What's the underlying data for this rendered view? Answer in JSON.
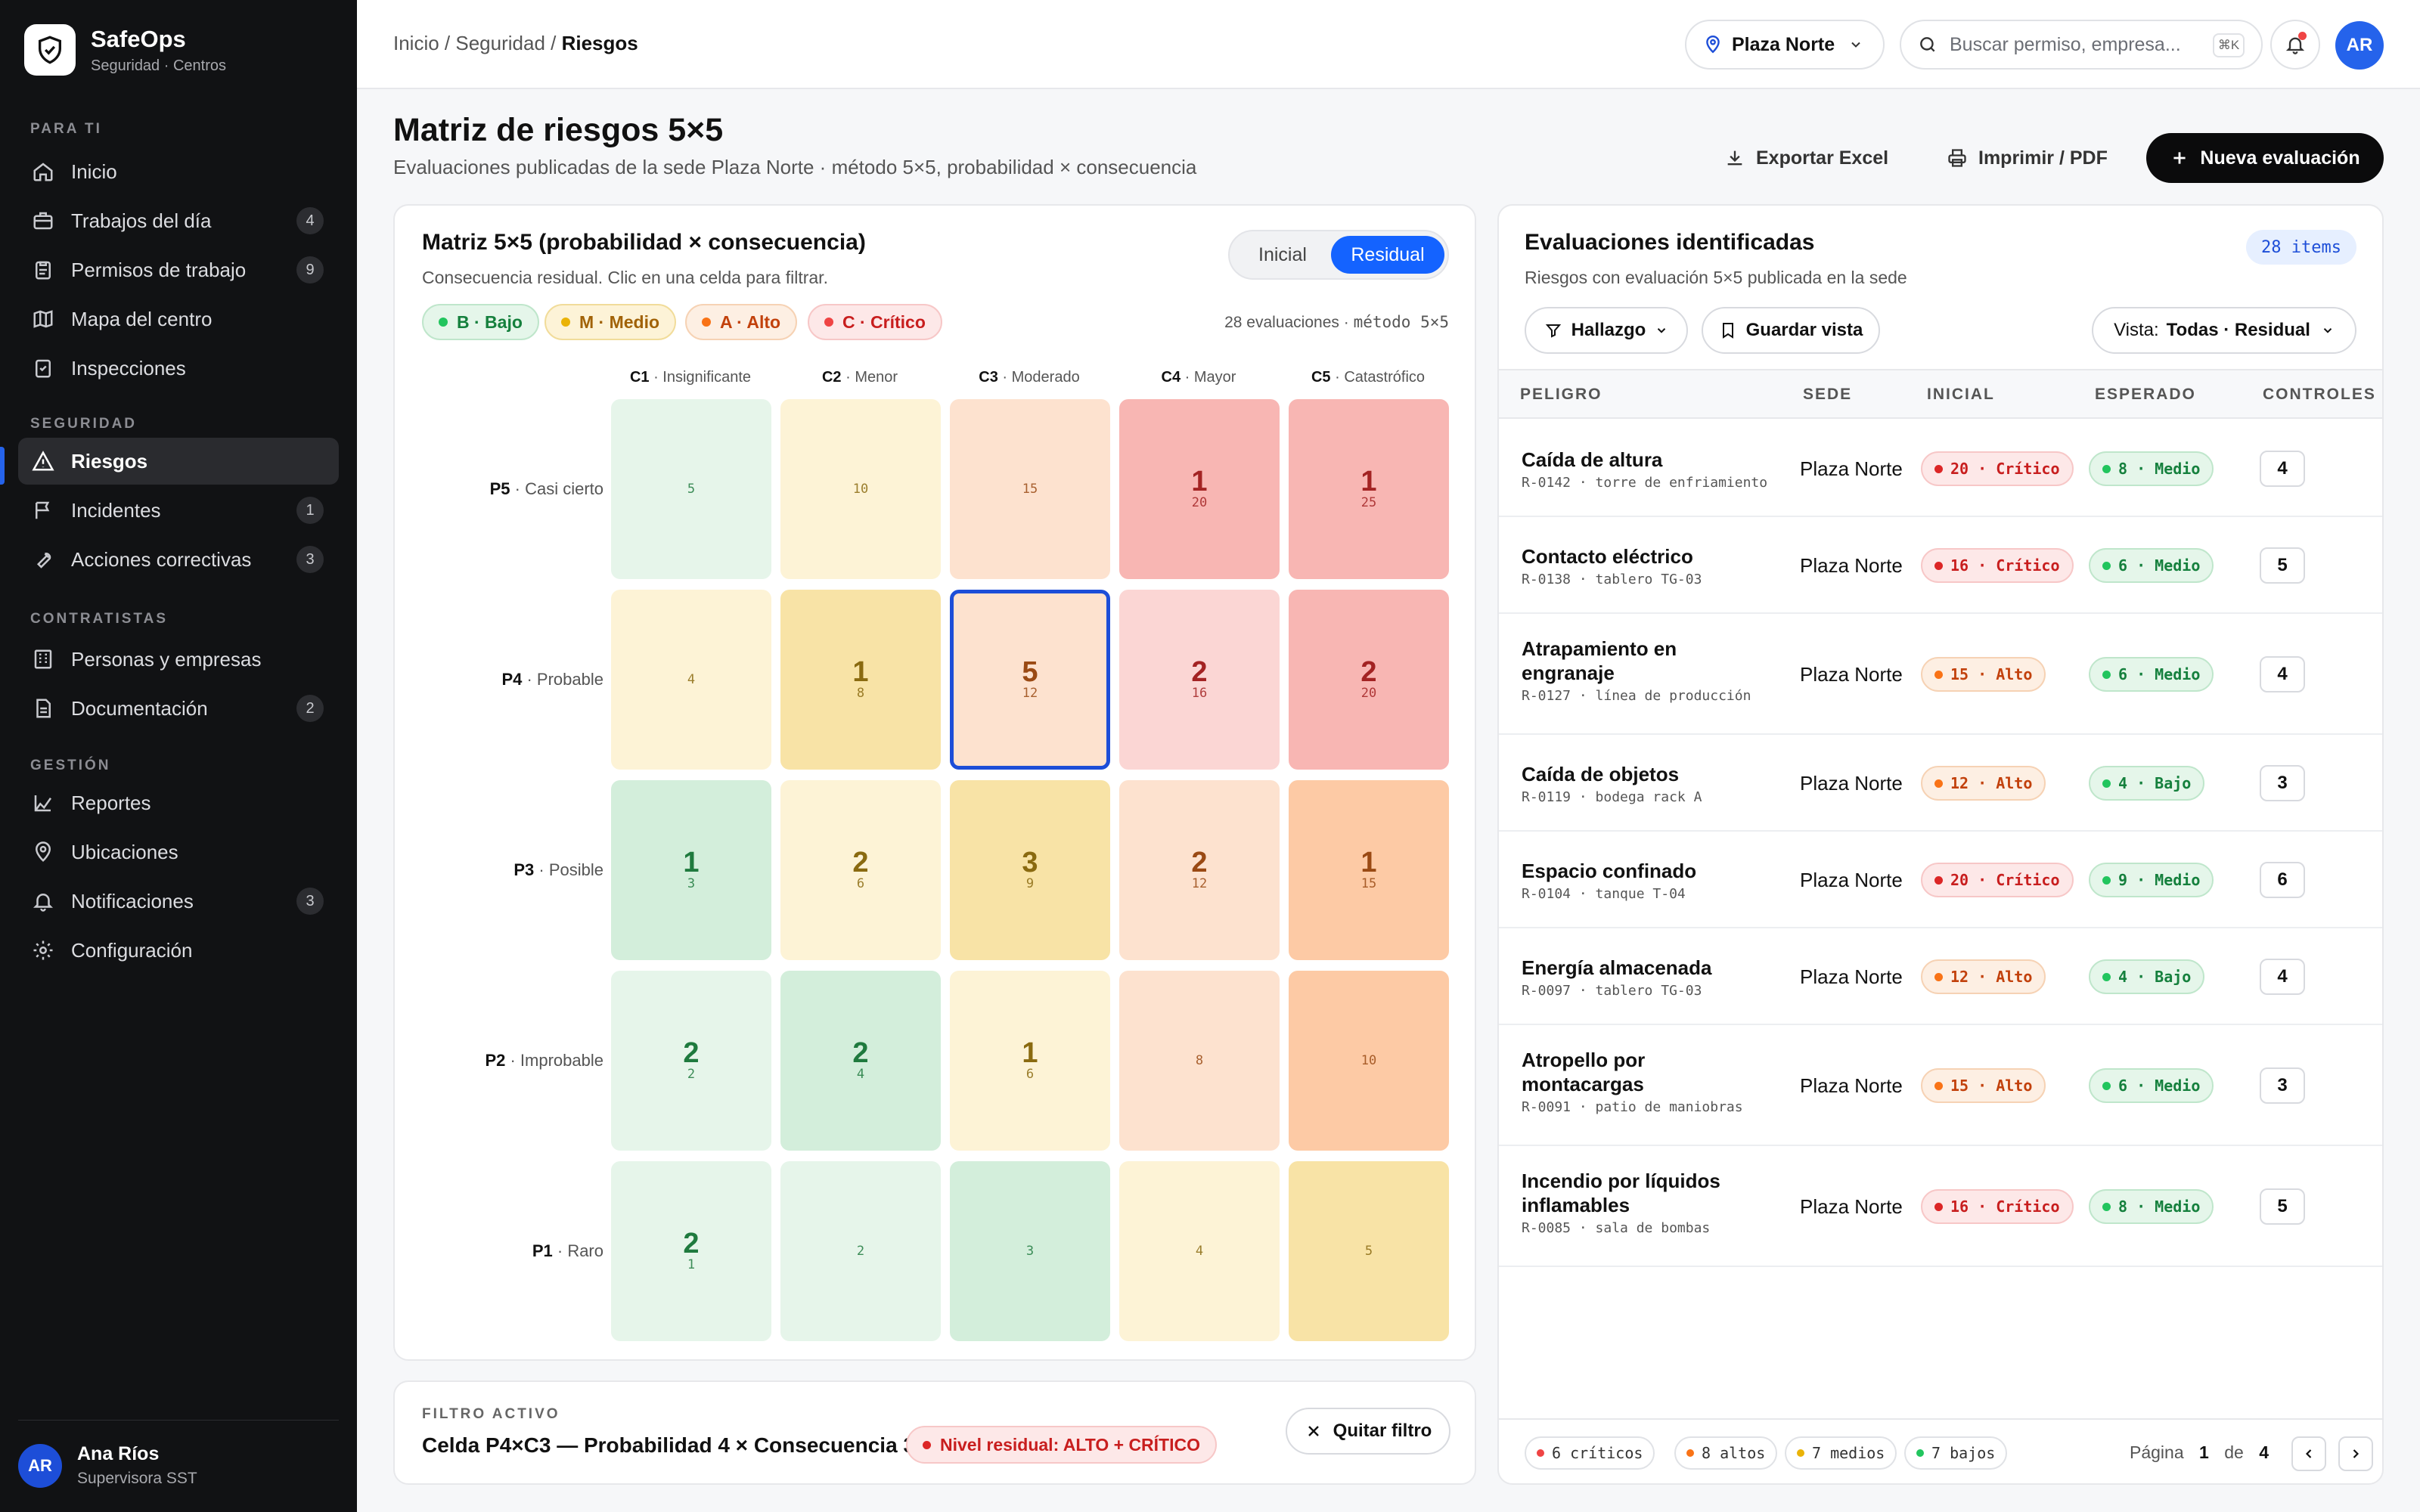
{
  "app": {
    "name": "SafeOps",
    "subtitle": "Seguridad · Centros"
  },
  "sidebar": {
    "sections": [
      "PARA TI",
      "SEGURIDAD",
      "CONTRATISTAS",
      "GESTIÓN"
    ],
    "items": [
      {
        "label": "Inicio",
        "icon": "home-icon",
        "count": ""
      },
      {
        "label": "Trabajos del día",
        "icon": "briefcase-icon",
        "count": "4"
      },
      {
        "label": "Permisos de trabajo",
        "icon": "clipboard-icon",
        "count": "9"
      },
      {
        "label": "Mapa del centro",
        "icon": "map-icon",
        "count": ""
      },
      {
        "label": "Inspecciones",
        "icon": "checklist-icon",
        "count": ""
      },
      {
        "label": "Riesgos",
        "icon": "warning-icon",
        "count": "",
        "active": true
      },
      {
        "label": "Incidentes",
        "icon": "flag-icon",
        "count": "1"
      },
      {
        "label": "Acciones correctivas",
        "icon": "wrench-icon",
        "count": "3"
      },
      {
        "label": "Personas y empresas",
        "icon": "building-icon",
        "count": ""
      },
      {
        "label": "Documentación",
        "icon": "document-icon",
        "count": "2"
      },
      {
        "label": "Reportes",
        "icon": "chart-icon",
        "count": ""
      },
      {
        "label": "Ubicaciones",
        "icon": "pin-icon",
        "count": ""
      },
      {
        "label": "Notificaciones",
        "icon": "bell-icon",
        "count": "3"
      },
      {
        "label": "Configuración",
        "icon": "gear-icon",
        "count": ""
      }
    ],
    "user": {
      "initials": "AR",
      "name": "Ana Ríos",
      "role": "Supervisora SST"
    }
  },
  "topbar": {
    "breadcrumb": {
      "a": "Inicio",
      "b": "Seguridad",
      "current": "Riesgos"
    },
    "location": "Plaza Norte",
    "search_placeholder": "Buscar permiso, empresa...",
    "shortcut": "⌘K",
    "avatar": "AR"
  },
  "header": {
    "title": "Matriz de riesgos 5×5",
    "subtitle": "Evaluaciones publicadas de la sede Plaza Norte · método 5×5, probabilidad × consecuencia",
    "export": "Exportar Excel",
    "print": "Imprimir / PDF",
    "new": "Nueva evaluación"
  },
  "matrix": {
    "title": "Matriz 5×5 (probabilidad × consecuencia)",
    "subtitle": "Consecuencia residual. Clic en una celda para filtrar.",
    "toggle": [
      "Inicial",
      "Residual"
    ],
    "toggle_selected": "Residual",
    "legend": [
      {
        "label": "B · Bajo",
        "color": "#22c55e"
      },
      {
        "label": "M · Medio",
        "color": "#eab308"
      },
      {
        "label": "A · Alto",
        "color": "#f97316"
      },
      {
        "label": "C · Crítico",
        "color": "#ef4444"
      }
    ],
    "count_label": "28 evaluaciones ·",
    "method": "método 5×5",
    "columns": [
      {
        "code": "C1",
        "name": "Insignificante"
      },
      {
        "code": "C2",
        "name": "Menor"
      },
      {
        "code": "C3",
        "name": "Moderado"
      },
      {
        "code": "C4",
        "name": "Mayor"
      },
      {
        "code": "C5",
        "name": "Catastrófico"
      }
    ],
    "rows": [
      {
        "code": "P5",
        "name": "Casi cierto",
        "cells": [
          {
            "n": "",
            "s": "5",
            "lvl": "b"
          },
          {
            "n": "",
            "s": "10",
            "lvl": "m"
          },
          {
            "n": "",
            "s": "15",
            "lvl": "a"
          },
          {
            "n": "1",
            "s": "20",
            "lvl": "c",
            "strong": true
          },
          {
            "n": "1",
            "s": "25",
            "lvl": "c",
            "strong": true
          }
        ]
      },
      {
        "code": "P4",
        "name": "Probable",
        "cells": [
          {
            "n": "",
            "s": "4",
            "lvl": "m"
          },
          {
            "n": "1",
            "s": "8",
            "lvl": "m",
            "strong": true
          },
          {
            "n": "5",
            "s": "12",
            "lvl": "a",
            "selected": true
          },
          {
            "n": "2",
            "s": "16",
            "lvl": "c"
          },
          {
            "n": "2",
            "s": "20",
            "lvl": "c",
            "strong": true
          }
        ]
      },
      {
        "code": "P3",
        "name": "Posible",
        "cells": [
          {
            "n": "1",
            "s": "3",
            "lvl": "b",
            "strong": true
          },
          {
            "n": "2",
            "s": "6",
            "lvl": "m"
          },
          {
            "n": "3",
            "s": "9",
            "lvl": "m",
            "strong": true
          },
          {
            "n": "2",
            "s": "12",
            "lvl": "a"
          },
          {
            "n": "1",
            "s": "15",
            "lvl": "a",
            "strong": true
          }
        ]
      },
      {
        "code": "P2",
        "name": "Improbable",
        "cells": [
          {
            "n": "2",
            "s": "2",
            "lvl": "b"
          },
          {
            "n": "2",
            "s": "4",
            "lvl": "b",
            "strong": true
          },
          {
            "n": "1",
            "s": "6",
            "lvl": "m"
          },
          {
            "n": "",
            "s": "8",
            "lvl": "a"
          },
          {
            "n": "",
            "s": "10",
            "lvl": "a",
            "strong": true
          }
        ]
      },
      {
        "code": "P1",
        "name": "Raro",
        "cells": [
          {
            "n": "2",
            "s": "1",
            "lvl": "b"
          },
          {
            "n": "",
            "s": "2",
            "lvl": "b"
          },
          {
            "n": "",
            "s": "3",
            "lvl": "b",
            "strong": true
          },
          {
            "n": "",
            "s": "4",
            "lvl": "m"
          },
          {
            "n": "",
            "s": "5",
            "lvl": "m",
            "strong": true
          }
        ]
      }
    ]
  },
  "filter": {
    "label": "FILTRO ACTIVO",
    "text": "Celda P4×C3 — Probabilidad 4 × Consecuencia 3",
    "badge": "Nivel residual: ALTO + CRÍTICO",
    "clear": "Quitar filtro"
  },
  "list": {
    "title": "Evaluaciones identificadas",
    "subtitle": "Riesgos con evaluación 5×5 publicada en la sede",
    "items_badge": "28 items",
    "hallazgo": "Hallazgo",
    "save_view": "Guardar vista",
    "view_label": "Vista:",
    "view_value": "Todas · Residual",
    "columns": [
      "PELIGRO",
      "SEDE",
      "INICIAL",
      "ESPERADO",
      "CONTROLES"
    ],
    "rows": [
      {
        "hazard": "Caída de altura",
        "code": "R-0142 · torre de enfriamiento",
        "site": "Plaza Norte",
        "initial": "20 · Crítico",
        "initial_lvl": "crit",
        "expected": "8 · Medio",
        "expected_lvl": "medio",
        "controls": "4"
      },
      {
        "hazard": "Contacto eléctrico",
        "code": "R-0138 · tablero TG-03",
        "site": "Plaza Norte",
        "initial": "16 · Crítico",
        "initial_lvl": "crit",
        "expected": "6 · Medio",
        "expected_lvl": "medio",
        "controls": "5"
      },
      {
        "hazard": "Atrapamiento en engranaje",
        "code": "R-0127 · línea de producción",
        "site": "Plaza Norte",
        "initial": "15 · Alto",
        "initial_lvl": "alto",
        "expected": "6 · Medio",
        "expected_lvl": "medio",
        "controls": "4"
      },
      {
        "hazard": "Caída de objetos",
        "code": "R-0119 · bodega rack A",
        "site": "Plaza Norte",
        "initial": "12 · Alto",
        "initial_lvl": "alto",
        "expected": "4 · Bajo",
        "expected_lvl": "bajo",
        "controls": "3"
      },
      {
        "hazard": "Espacio confinado",
        "code": "R-0104 · tanque T-04",
        "site": "Plaza Norte",
        "initial": "20 · Crítico",
        "initial_lvl": "crit",
        "expected": "9 · Medio",
        "expected_lvl": "medio",
        "controls": "6"
      },
      {
        "hazard": "Energía almacenada",
        "code": "R-0097 · tablero TG-03",
        "site": "Plaza Norte",
        "initial": "12 · Alto",
        "initial_lvl": "alto",
        "expected": "4 · Bajo",
        "expected_lvl": "bajo",
        "controls": "4"
      },
      {
        "hazard": "Atropello por montacargas",
        "code": "R-0091 · patio de maniobras",
        "site": "Plaza Norte",
        "initial": "15 · Alto",
        "initial_lvl": "alto",
        "expected": "6 · Medio",
        "expected_lvl": "medio",
        "controls": "3"
      },
      {
        "hazard": "Incendio por líquidos inflamables",
        "code": "R-0085 · sala de bombas",
        "site": "Plaza Norte",
        "initial": "16 · Crítico",
        "initial_lvl": "crit",
        "expected": "8 · Medio",
        "expected_lvl": "medio",
        "controls": "5"
      }
    ],
    "summary": [
      {
        "label": "6 críticos",
        "color": "#ef4444"
      },
      {
        "label": "8 altos",
        "color": "#f97316"
      },
      {
        "label": "7 medios",
        "color": "#eab308"
      },
      {
        "label": "7 bajos",
        "color": "#22c55e"
      }
    ],
    "page_label": "Página",
    "page": "1",
    "of_label": "de",
    "pages": "4"
  }
}
